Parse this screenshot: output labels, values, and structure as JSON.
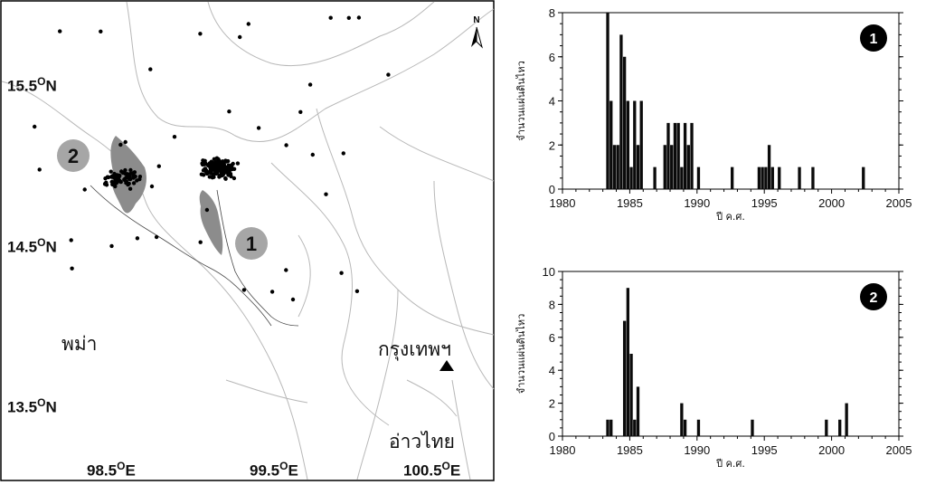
{
  "map": {
    "lat_labels": [
      "15.5",
      "14.5",
      "13.5"
    ],
    "lat_suffix": "N",
    "lon_labels": [
      "98.5",
      "99.5",
      "100.5"
    ],
    "lon_suffix": "E",
    "degree_symbol": "O",
    "north_label": "N",
    "place_myanmar": "พม่า",
    "place_bangkok": "กรุงเทพฯ",
    "place_gulf": "อ่าวไทย",
    "marker_1": "1",
    "marker_2": "2",
    "colors": {
      "reservoir": "#8c8c8c",
      "marker": "#a6a6a6",
      "border": "#b3b3b3",
      "dot": "#000000"
    }
  },
  "chart_data": [
    {
      "type": "bar",
      "badge": "1",
      "xlabel": "ปี ค.ศ.",
      "ylabel": "จำนวนแผ่นดินไหว",
      "xlim": [
        1980,
        2005
      ],
      "ylim": [
        0,
        8
      ],
      "yticks": [
        "0",
        "2",
        "4",
        "6",
        "8"
      ],
      "xticks": [
        "1980",
        "1985",
        "1990",
        "1995",
        "2000",
        "2005"
      ],
      "bin_width": 0.25,
      "bars": [
        [
          1983.25,
          8
        ],
        [
          1983.5,
          4
        ],
        [
          1983.75,
          2
        ],
        [
          1984.0,
          2
        ],
        [
          1984.25,
          7
        ],
        [
          1984.5,
          6
        ],
        [
          1984.75,
          4
        ],
        [
          1985.0,
          1
        ],
        [
          1985.25,
          4
        ],
        [
          1985.5,
          2
        ],
        [
          1985.75,
          4
        ],
        [
          1986.75,
          1
        ],
        [
          1987.5,
          2
        ],
        [
          1987.75,
          3
        ],
        [
          1988.0,
          2
        ],
        [
          1988.25,
          3
        ],
        [
          1988.5,
          3
        ],
        [
          1988.75,
          1
        ],
        [
          1989.0,
          3
        ],
        [
          1989.25,
          2
        ],
        [
          1989.5,
          3
        ],
        [
          1990.0,
          1
        ],
        [
          1992.5,
          1
        ],
        [
          1994.5,
          1
        ],
        [
          1994.75,
          1
        ],
        [
          1995.0,
          1
        ],
        [
          1995.25,
          2
        ],
        [
          1995.5,
          1
        ],
        [
          1996.0,
          1
        ],
        [
          1997.5,
          1
        ],
        [
          1998.5,
          1
        ],
        [
          2002.25,
          1
        ]
      ]
    },
    {
      "type": "bar",
      "badge": "2",
      "xlabel": "ปี ค.ศ.",
      "ylabel": "จำนวนแผ่นดินไหว",
      "xlim": [
        1980,
        2005
      ],
      "ylim": [
        0,
        10
      ],
      "yticks": [
        "0",
        "2",
        "4",
        "6",
        "8",
        "10"
      ],
      "xticks": [
        "1980",
        "1985",
        "1990",
        "1995",
        "2000",
        "2005"
      ],
      "bin_width": 0.25,
      "bars": [
        [
          1983.25,
          1
        ],
        [
          1983.5,
          1
        ],
        [
          1984.5,
          7
        ],
        [
          1984.75,
          9
        ],
        [
          1985.0,
          5
        ],
        [
          1985.25,
          1
        ],
        [
          1985.5,
          3
        ],
        [
          1988.75,
          2
        ],
        [
          1989.0,
          1
        ],
        [
          1990.0,
          1
        ],
        [
          1994.0,
          1
        ],
        [
          1999.5,
          1
        ],
        [
          2000.5,
          1
        ],
        [
          2001.0,
          2
        ]
      ]
    }
  ]
}
